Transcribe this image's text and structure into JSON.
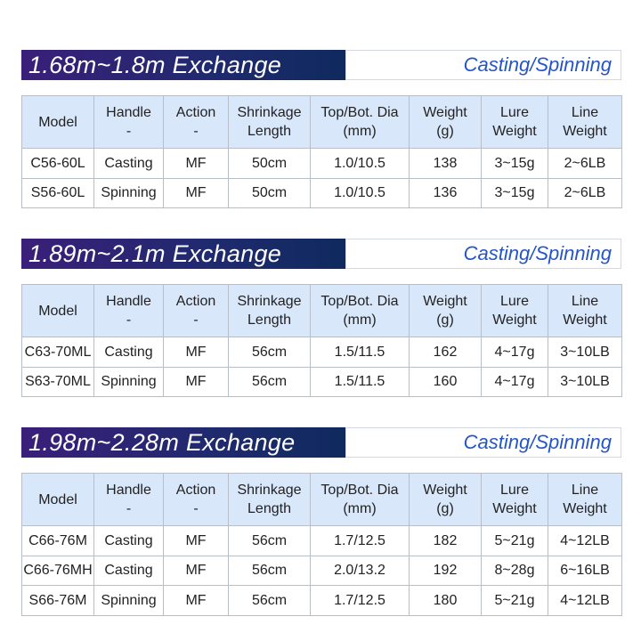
{
  "sections": [
    {
      "title": "1.68m~1.8m Exchange",
      "subtitle": "Casting/Spinning",
      "table": {
        "header": [
          [
            "Model"
          ],
          [
            "Handle",
            "-"
          ],
          [
            "Action",
            "-"
          ],
          [
            "Shrinkage",
            "Length"
          ],
          [
            "Top/Bot. Dia",
            "(mm)"
          ],
          [
            "Weight",
            "(g)"
          ],
          [
            "Lure",
            "Weight"
          ],
          [
            "Line",
            "Weight"
          ]
        ],
        "rows": [
          [
            "C56-60L",
            "Casting",
            "MF",
            "50cm",
            "1.0/10.5",
            138,
            "3~15g",
            "2~6LB"
          ],
          [
            "S56-60L",
            "Spinning",
            "MF",
            "50cm",
            "1.0/10.5",
            136,
            "3~15g",
            "2~6LB"
          ]
        ]
      }
    },
    {
      "title": "1.89m~2.1m Exchange",
      "subtitle": "Casting/Spinning",
      "table": {
        "header": [
          [
            "Model"
          ],
          [
            "Handle",
            "-"
          ],
          [
            "Action",
            "-"
          ],
          [
            "Shrinkage",
            "Length"
          ],
          [
            "Top/Bot. Dia",
            "(mm)"
          ],
          [
            "Weight",
            "(g)"
          ],
          [
            "Lure",
            "Weight"
          ],
          [
            "Line",
            "Weight"
          ]
        ],
        "rows": [
          [
            "C63-70ML",
            "Casting",
            "MF",
            "56cm",
            "1.5/11.5",
            162,
            "4~17g",
            "3~10LB"
          ],
          [
            "S63-70ML",
            "Spinning",
            "MF",
            "56cm",
            "1.5/11.5",
            160,
            "4~17g",
            "3~10LB"
          ]
        ]
      }
    },
    {
      "title": "1.98m~2.28m Exchange",
      "subtitle": "Casting/Spinning",
      "table": {
        "header": [
          [
            "Model"
          ],
          [
            "Handle",
            "-"
          ],
          [
            "Action",
            "-"
          ],
          [
            "Shrinkage",
            "Length"
          ],
          [
            "Top/Bot. Dia",
            "(mm)"
          ],
          [
            "Weight",
            "(g)"
          ],
          [
            "Lure",
            "Weight"
          ],
          [
            "Line",
            "Weight"
          ]
        ],
        "rows": [
          [
            "C66-76M",
            "Casting",
            "MF",
            "56cm",
            "1.7/12.5",
            182,
            "5~21g",
            "4~12LB"
          ],
          [
            "C66-76MH",
            "Casting",
            "MF",
            "56cm",
            "2.0/13.2",
            192,
            "8~28g",
            "6~16LB"
          ],
          [
            "S66-76M",
            "Spinning",
            "MF",
            "56cm",
            "1.7/12.5",
            180,
            "5~21g",
            "4~12LB"
          ]
        ]
      }
    }
  ]
}
